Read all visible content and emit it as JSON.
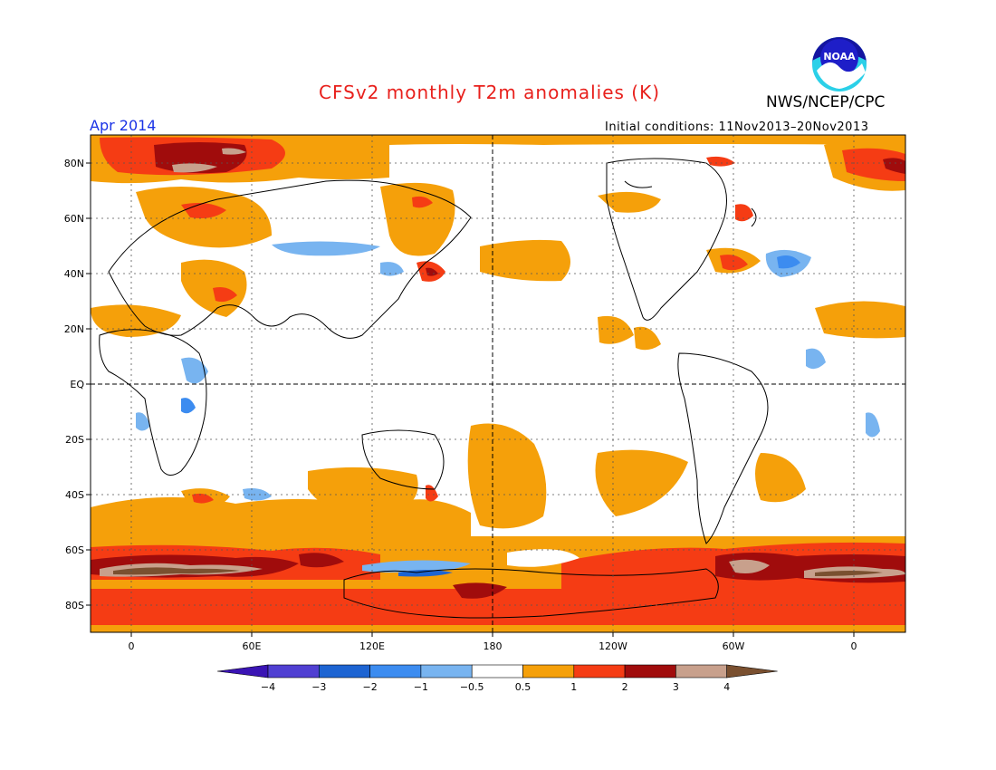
{
  "header": {
    "title": "CFSv2 monthly T2m anomalies (K)",
    "agency": "NWS/NCEP/CPC",
    "valid_month": "Apr 2014",
    "initial_conditions": "Initial conditions: 11Nov2013–20Nov2013"
  },
  "logo": {
    "icon": "noaa-logo-icon",
    "text": "NOAA"
  },
  "axes": {
    "lat_labels": [
      "80N",
      "60N",
      "40N",
      "20N",
      "EQ",
      "20S",
      "40S",
      "60S",
      "80S"
    ],
    "lon_labels": [
      "0",
      "60E",
      "120E",
      "180",
      "120W",
      "60W",
      "0"
    ]
  },
  "colorbar": {
    "levels": [
      "−4",
      "−3",
      "−2",
      "−1",
      "−0.5",
      "0.5",
      "1",
      "2",
      "3",
      "4"
    ],
    "colors": [
      "#3a14b4",
      "#5040d2",
      "#1d64d2",
      "#3c8cf0",
      "#78b4f0",
      "#ffffff",
      "#f5a00a",
      "#f53c14",
      "#a00c0c",
      "#c8a08c",
      "#7a5030"
    ]
  },
  "palette": {
    "neutral": "#ffffff",
    "light_warm": "#f5a00a",
    "warm": "#f53c14",
    "hot": "#a00c0c",
    "very_hot": "#c8a08c",
    "extreme_hot": "#7a5030",
    "light_cold": "#78b4f0",
    "cold": "#3c8cf0",
    "colder": "#1d64d2"
  }
}
